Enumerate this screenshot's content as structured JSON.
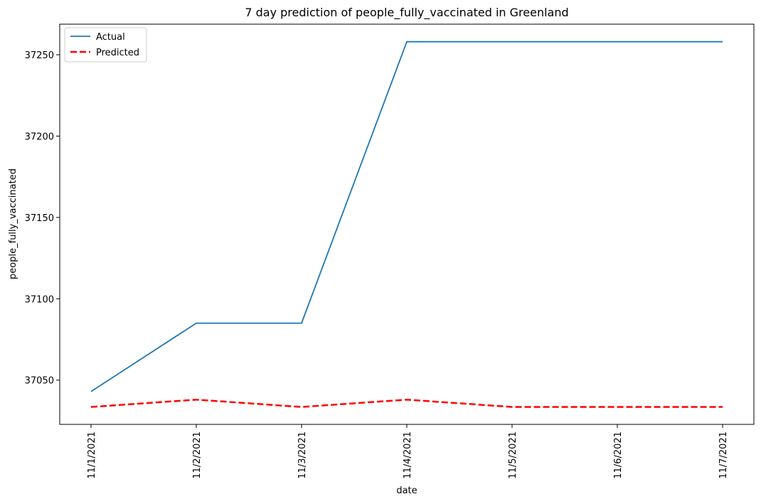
{
  "chart_data": {
    "type": "line",
    "title": "7 day prediction of people_fully_vaccinated in Greenland",
    "xlabel": "date",
    "ylabel": "people_fully_vaccinated",
    "categories": [
      "11/1/2021",
      "11/2/2021",
      "11/3/2021",
      "11/4/2021",
      "11/5/2021",
      "11/6/2021",
      "11/7/2021"
    ],
    "series": [
      {
        "name": "Actual",
        "color": "#1f77b4",
        "style": "solid",
        "values": [
          37043,
          37085,
          37085,
          37258,
          37258,
          37258,
          37258
        ]
      },
      {
        "name": "Predicted",
        "color": "#ff0000",
        "style": "dashed",
        "values": [
          37033.5,
          37038,
          37033.5,
          37038,
          37033.5,
          37033.5,
          37033.5
        ]
      }
    ],
    "yticks": [
      37050,
      37100,
      37150,
      37200,
      37250
    ],
    "ylim": [
      37022.8,
      37268.8
    ],
    "legend": "top-left",
    "grid": false
  }
}
